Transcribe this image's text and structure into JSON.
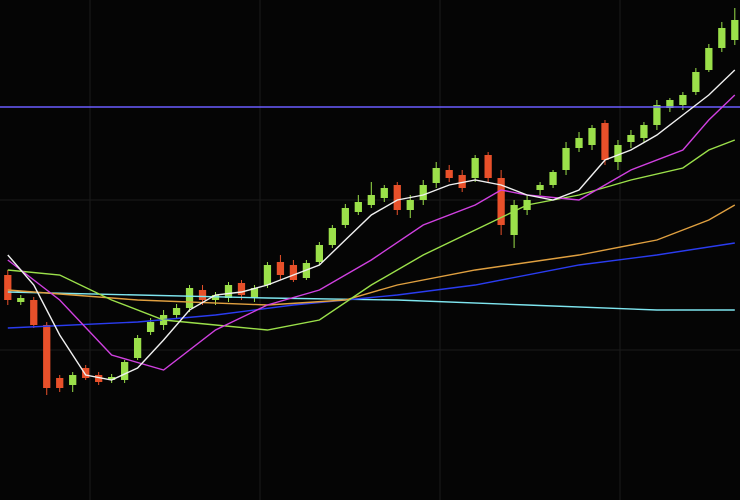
{
  "chart_data": {
    "type": "candlestick",
    "up_color": "#9be04a",
    "down_color": "#e8502a",
    "background": "#050505",
    "xlim": [
      -0.6,
      56.4
    ],
    "ylim": [
      0,
      500
    ],
    "candles": [
      {
        "open": 225,
        "high": 230,
        "low": 195,
        "close": 200
      },
      {
        "open": 198,
        "high": 205,
        "low": 195,
        "close": 202
      },
      {
        "open": 200,
        "high": 203,
        "low": 172,
        "close": 175
      },
      {
        "open": 175,
        "high": 178,
        "low": 105,
        "close": 112
      },
      {
        "open": 122,
        "high": 125,
        "low": 108,
        "close": 112
      },
      {
        "open": 115,
        "high": 128,
        "low": 108,
        "close": 125
      },
      {
        "open": 132,
        "high": 135,
        "low": 120,
        "close": 122
      },
      {
        "open": 125,
        "high": 128,
        "low": 115,
        "close": 118
      },
      {
        "open": 120,
        "high": 126,
        "low": 117,
        "close": 123
      },
      {
        "open": 120,
        "high": 140,
        "low": 117,
        "close": 138
      },
      {
        "open": 142,
        "high": 165,
        "low": 140,
        "close": 162
      },
      {
        "open": 168,
        "high": 182,
        "low": 165,
        "close": 178
      },
      {
        "open": 175,
        "high": 190,
        "low": 170,
        "close": 185
      },
      {
        "open": 185,
        "high": 196,
        "low": 182,
        "close": 192
      },
      {
        "open": 192,
        "high": 215,
        "low": 188,
        "close": 212
      },
      {
        "open": 210,
        "high": 215,
        "low": 195,
        "close": 200
      },
      {
        "open": 200,
        "high": 208,
        "low": 195,
        "close": 205
      },
      {
        "open": 202,
        "high": 218,
        "low": 198,
        "close": 215
      },
      {
        "open": 217,
        "high": 220,
        "low": 200,
        "close": 205
      },
      {
        "open": 202,
        "high": 215,
        "low": 198,
        "close": 212
      },
      {
        "open": 215,
        "high": 238,
        "low": 212,
        "close": 235
      },
      {
        "open": 238,
        "high": 245,
        "low": 220,
        "close": 225
      },
      {
        "open": 235,
        "high": 240,
        "low": 218,
        "close": 220
      },
      {
        "open": 222,
        "high": 240,
        "low": 220,
        "close": 237
      },
      {
        "open": 238,
        "high": 258,
        "low": 235,
        "close": 255
      },
      {
        "open": 255,
        "high": 275,
        "low": 252,
        "close": 272
      },
      {
        "open": 275,
        "high": 296,
        "low": 272,
        "close": 292
      },
      {
        "open": 288,
        "high": 305,
        "low": 285,
        "close": 298
      },
      {
        "open": 295,
        "high": 318,
        "low": 292,
        "close": 305
      },
      {
        "open": 302,
        "high": 315,
        "low": 298,
        "close": 312
      },
      {
        "open": 315,
        "high": 318,
        "low": 285,
        "close": 290
      },
      {
        "open": 290,
        "high": 305,
        "low": 282,
        "close": 300
      },
      {
        "open": 300,
        "high": 320,
        "low": 295,
        "close": 315
      },
      {
        "open": 317,
        "high": 338,
        "low": 312,
        "close": 332
      },
      {
        "open": 330,
        "high": 335,
        "low": 318,
        "close": 322
      },
      {
        "open": 325,
        "high": 330,
        "low": 308,
        "close": 312
      },
      {
        "open": 322,
        "high": 345,
        "low": 318,
        "close": 342
      },
      {
        "open": 345,
        "high": 348,
        "low": 318,
        "close": 322
      },
      {
        "open": 322,
        "high": 330,
        "low": 265,
        "close": 275
      },
      {
        "open": 265,
        "high": 300,
        "low": 252,
        "close": 295
      },
      {
        "open": 290,
        "high": 305,
        "low": 285,
        "close": 300
      },
      {
        "open": 310,
        "high": 318,
        "low": 305,
        "close": 315
      },
      {
        "open": 315,
        "high": 330,
        "low": 312,
        "close": 328
      },
      {
        "open": 330,
        "high": 358,
        "low": 325,
        "close": 352
      },
      {
        "open": 352,
        "high": 368,
        "low": 348,
        "close": 362
      },
      {
        "open": 355,
        "high": 375,
        "low": 350,
        "close": 372
      },
      {
        "open": 377,
        "high": 380,
        "low": 335,
        "close": 340
      },
      {
        "open": 338,
        "high": 360,
        "low": 330,
        "close": 355
      },
      {
        "open": 358,
        "high": 370,
        "low": 352,
        "close": 365
      },
      {
        "open": 362,
        "high": 378,
        "low": 358,
        "close": 375
      },
      {
        "open": 375,
        "high": 400,
        "low": 370,
        "close": 395
      },
      {
        "open": 392,
        "high": 402,
        "low": 388,
        "close": 400
      },
      {
        "open": 395,
        "high": 408,
        "low": 390,
        "close": 405
      },
      {
        "open": 408,
        "high": 432,
        "low": 405,
        "close": 428
      },
      {
        "open": 430,
        "high": 456,
        "low": 428,
        "close": 452
      },
      {
        "open": 452,
        "high": 478,
        "low": 448,
        "close": 472
      },
      {
        "open": 460,
        "high": 492,
        "low": 455,
        "close": 480
      }
    ],
    "series": [
      {
        "color": "#6a5cff",
        "x": [
          -0.6,
          56.4
        ],
        "values": [
          393,
          393
        ]
      },
      {
        "color": "#7fe6f0",
        "x": [
          0,
          20,
          30,
          40,
          50,
          56
        ],
        "values": [
          208,
          202,
          200,
          195,
          190,
          190
        ]
      },
      {
        "color": "#2a3cf0",
        "x": [
          0,
          10,
          16,
          22,
          26,
          30,
          36,
          44,
          50,
          56
        ],
        "values": [
          172,
          178,
          185,
          195,
          200,
          205,
          215,
          235,
          245,
          257
        ]
      },
      {
        "color": "#e0a040",
        "x": [
          0,
          10,
          20,
          26,
          30,
          36,
          44,
          50,
          54,
          56
        ],
        "values": [
          210,
          200,
          195,
          200,
          215,
          230,
          245,
          260,
          280,
          295
        ]
      },
      {
        "color": "#9be04a",
        "x": [
          0,
          4,
          8,
          12,
          16,
          20,
          24,
          28,
          32,
          36,
          40,
          44,
          48,
          52,
          54,
          56
        ],
        "values": [
          230,
          225,
          200,
          180,
          175,
          170,
          180,
          215,
          245,
          270,
          295,
          305,
          320,
          332,
          350,
          360
        ]
      },
      {
        "color": "#d040e0",
        "x": [
          0,
          4,
          8,
          12,
          16,
          20,
          24,
          28,
          32,
          36,
          38,
          40,
          44,
          48,
          52,
          54,
          56
        ],
        "values": [
          240,
          200,
          145,
          130,
          170,
          195,
          210,
          240,
          275,
          295,
          310,
          305,
          300,
          330,
          350,
          380,
          405
        ]
      },
      {
        "color": "#f0f0f0",
        "x": [
          0,
          2,
          4,
          6,
          8,
          10,
          12,
          14,
          16,
          18,
          20,
          22,
          24,
          26,
          28,
          30,
          32,
          34,
          36,
          38,
          40,
          42,
          44,
          46,
          48,
          50,
          52,
          54,
          56
        ],
        "values": [
          245,
          215,
          165,
          125,
          120,
          132,
          160,
          190,
          205,
          208,
          215,
          225,
          235,
          260,
          285,
          300,
          305,
          315,
          320,
          315,
          305,
          300,
          310,
          340,
          350,
          365,
          385,
          405,
          430
        ]
      }
    ]
  }
}
